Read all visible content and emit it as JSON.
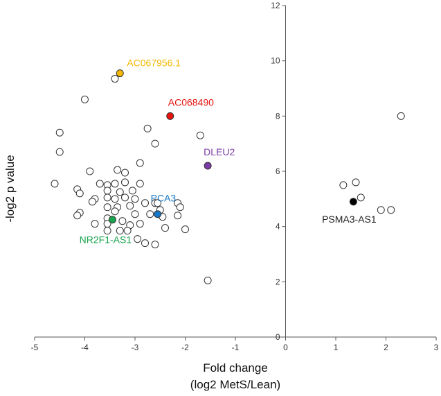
{
  "chart_data": {
    "type": "scatter",
    "xlabel_line1": "Fold change",
    "xlabel_line2": "(log2 MetS/Lean)",
    "ylabel": "-log2 p value",
    "xlim": [
      -5,
      3
    ],
    "ylim": [
      0,
      12
    ],
    "xticks": [
      -5,
      -4,
      -3,
      -2,
      -1,
      0,
      1,
      2,
      3
    ],
    "yticks": [
      0,
      2,
      4,
      6,
      8,
      10,
      12
    ],
    "grid": false,
    "points": [
      {
        "x": -3.4,
        "y": 9.35
      },
      {
        "x": -4.0,
        "y": 8.6
      },
      {
        "x": -2.75,
        "y": 7.55
      },
      {
        "x": -4.5,
        "y": 7.4
      },
      {
        "x": -2.6,
        "y": 7.0
      },
      {
        "x": -1.7,
        "y": 7.3
      },
      {
        "x": -4.5,
        "y": 6.7
      },
      {
        "x": -2.9,
        "y": 6.3
      },
      {
        "x": -3.9,
        "y": 6.0
      },
      {
        "x": -3.35,
        "y": 6.05
      },
      {
        "x": -3.2,
        "y": 5.95
      },
      {
        "x": -4.6,
        "y": 5.55
      },
      {
        "x": -3.7,
        "y": 5.55
      },
      {
        "x": -3.55,
        "y": 5.5
      },
      {
        "x": -3.4,
        "y": 5.55
      },
      {
        "x": -3.2,
        "y": 5.6
      },
      {
        "x": -2.9,
        "y": 5.55
      },
      {
        "x": -4.15,
        "y": 5.35
      },
      {
        "x": -3.55,
        "y": 5.3
      },
      {
        "x": -3.3,
        "y": 5.25
      },
      {
        "x": -3.05,
        "y": 5.3
      },
      {
        "x": -4.1,
        "y": 5.2
      },
      {
        "x": -3.8,
        "y": 5.0
      },
      {
        "x": -3.55,
        "y": 5.05
      },
      {
        "x": -3.4,
        "y": 5.0
      },
      {
        "x": -3.2,
        "y": 5.05
      },
      {
        "x": -3.0,
        "y": 5.0
      },
      {
        "x": -3.85,
        "y": 4.9
      },
      {
        "x": -3.55,
        "y": 4.7
      },
      {
        "x": -3.35,
        "y": 4.7
      },
      {
        "x": -3.1,
        "y": 4.75
      },
      {
        "x": -2.8,
        "y": 4.85
      },
      {
        "x": -2.6,
        "y": 4.85
      },
      {
        "x": -2.55,
        "y": 4.85
      },
      {
        "x": -2.15,
        "y": 4.85
      },
      {
        "x": -2.1,
        "y": 4.7
      },
      {
        "x": -2.5,
        "y": 4.6
      },
      {
        "x": -3.4,
        "y": 4.55
      },
      {
        "x": -4.1,
        "y": 4.5
      },
      {
        "x": -4.15,
        "y": 4.4
      },
      {
        "x": -3.0,
        "y": 4.45
      },
      {
        "x": -2.7,
        "y": 4.45
      },
      {
        "x": -2.45,
        "y": 4.35
      },
      {
        "x": -2.15,
        "y": 4.4
      },
      {
        "x": -3.55,
        "y": 4.3
      },
      {
        "x": -3.8,
        "y": 4.1
      },
      {
        "x": -3.55,
        "y": 4.1
      },
      {
        "x": -3.25,
        "y": 4.2
      },
      {
        "x": -3.1,
        "y": 4.05
      },
      {
        "x": -2.9,
        "y": 4.1
      },
      {
        "x": -2.4,
        "y": 3.95
      },
      {
        "x": -2.0,
        "y": 3.9
      },
      {
        "x": -3.55,
        "y": 3.85
      },
      {
        "x": -3.3,
        "y": 3.85
      },
      {
        "x": -3.15,
        "y": 3.85
      },
      {
        "x": -2.95,
        "y": 3.55
      },
      {
        "x": -2.8,
        "y": 3.4
      },
      {
        "x": -2.6,
        "y": 3.35
      },
      {
        "x": -1.55,
        "y": 2.05
      },
      {
        "x": 2.3,
        "y": 8.0
      },
      {
        "x": 1.15,
        "y": 5.5
      },
      {
        "x": 1.4,
        "y": 5.6
      },
      {
        "x": 1.5,
        "y": 5.05
      },
      {
        "x": 1.9,
        "y": 4.6
      },
      {
        "x": 2.1,
        "y": 4.6
      }
    ],
    "highlighted": [
      {
        "label": "AC067956.1",
        "x": -3.3,
        "y": 9.55,
        "color": "#F5B800",
        "label_color": "#F5B800"
      },
      {
        "label": "AC068490",
        "x": -2.3,
        "y": 8.0,
        "color": "#E8130F",
        "label_color": "#E8130F"
      },
      {
        "label": "DLEU2",
        "x": -1.55,
        "y": 6.2,
        "color": "#7B3BA6",
        "label_color": "#7B3BA6"
      },
      {
        "label": "PCA3",
        "x": -2.55,
        "y": 4.45,
        "color": "#1878C8",
        "label_color": "#1878C8"
      },
      {
        "label": "NR2F1-AS1",
        "x": -3.45,
        "y": 4.25,
        "color": "#19A54D",
        "label_color": "#19A54D"
      },
      {
        "label": "PSMA3-AS1",
        "x": 1.35,
        "y": 4.9,
        "color": "#000000",
        "label_color": "#222222"
      }
    ]
  }
}
